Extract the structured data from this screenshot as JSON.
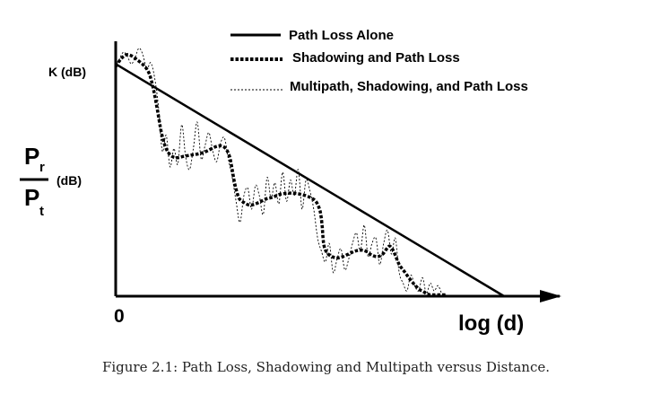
{
  "chart_data": {
    "type": "line",
    "xlabel": "log (d)",
    "x_origin_label": "0",
    "ylabel": {
      "numerator": "P",
      "numerator_sub": "r",
      "denominator": "P",
      "denominator_sub": "t",
      "unit": "(dB)"
    },
    "y_marker_label": "K (dB)",
    "xlim": [
      0,
      1
    ],
    "ylim": [
      0,
      1
    ],
    "legend_placement": "top-center",
    "series": [
      {
        "name": "Path Loss Alone",
        "style": "solid",
        "x": [
          0,
          1
        ],
        "y": [
          0.88,
          0
        ]
      },
      {
        "name": "Shadowing and Path Loss",
        "style": "dotted-thick",
        "x": [
          0.0,
          0.014,
          0.028,
          0.042,
          0.056,
          0.072,
          0.086,
          0.098,
          0.108,
          0.115,
          0.121,
          0.127,
          0.135,
          0.145,
          0.158,
          0.175,
          0.195,
          0.215,
          0.235,
          0.255,
          0.27,
          0.283,
          0.293,
          0.3,
          0.306,
          0.312,
          0.318,
          0.33,
          0.345,
          0.36,
          0.375,
          0.39,
          0.405,
          0.42,
          0.44,
          0.46,
          0.48,
          0.5,
          0.515,
          0.525,
          0.529,
          0.532,
          0.534,
          0.536,
          0.54,
          0.547,
          0.557,
          0.57,
          0.585,
          0.6,
          0.615,
          0.63,
          0.645,
          0.66,
          0.675,
          0.688,
          0.698,
          0.705,
          0.712,
          0.72,
          0.73,
          0.745,
          0.76,
          0.772,
          0.782,
          0.79,
          0.795,
          0.8,
          0.803,
          0.807,
          0.812,
          0.82,
          0.828,
          0.84,
          0.85
        ],
        "y": [
          0.87,
          0.9,
          0.915,
          0.91,
          0.895,
          0.875,
          0.845,
          0.78,
          0.7,
          0.64,
          0.6,
          0.57,
          0.545,
          0.53,
          0.525,
          0.53,
          0.535,
          0.54,
          0.55,
          0.565,
          0.57,
          0.56,
          0.53,
          0.48,
          0.43,
          0.395,
          0.37,
          0.355,
          0.345,
          0.35,
          0.36,
          0.37,
          0.375,
          0.385,
          0.39,
          0.39,
          0.385,
          0.375,
          0.36,
          0.33,
          0.3,
          0.26,
          0.22,
          0.195,
          0.175,
          0.16,
          0.15,
          0.145,
          0.15,
          0.16,
          0.17,
          0.175,
          0.17,
          0.155,
          0.15,
          0.16,
          0.18,
          0.19,
          0.18,
          0.155,
          0.12,
          0.09,
          0.06,
          0.04,
          0.025,
          0.02,
          0.015,
          0.01,
          0.008,
          0.006,
          0.005,
          0.005,
          0.005,
          0.005,
          0.005
        ]
      },
      {
        "name": "Multipath, Shadowing, and Path Loss",
        "style": "dotted-thin",
        "x": [
          0.0,
          0.01,
          0.02,
          0.03,
          0.04,
          0.05,
          0.06,
          0.07,
          0.08,
          0.09,
          0.1,
          0.11,
          0.12,
          0.13,
          0.14,
          0.15,
          0.16,
          0.17,
          0.18,
          0.19,
          0.2,
          0.21,
          0.22,
          0.23,
          0.24,
          0.25,
          0.26,
          0.27,
          0.28,
          0.29,
          0.3,
          0.31,
          0.32,
          0.33,
          0.34,
          0.35,
          0.36,
          0.37,
          0.38,
          0.39,
          0.4,
          0.41,
          0.42,
          0.43,
          0.44,
          0.45,
          0.46,
          0.47,
          0.48,
          0.49,
          0.5,
          0.51,
          0.52,
          0.53,
          0.54,
          0.55,
          0.56,
          0.57,
          0.58,
          0.59,
          0.6,
          0.61,
          0.62,
          0.63,
          0.64,
          0.65,
          0.66,
          0.67,
          0.68,
          0.69,
          0.7,
          0.71,
          0.72,
          0.73,
          0.74,
          0.75,
          0.76,
          0.77,
          0.78,
          0.79,
          0.8,
          0.81,
          0.82,
          0.83,
          0.84,
          0.85
        ],
        "y": [
          0.87,
          0.9,
          0.925,
          0.91,
          0.88,
          0.905,
          0.94,
          0.915,
          0.86,
          0.885,
          0.83,
          0.72,
          0.55,
          0.61,
          0.49,
          0.56,
          0.5,
          0.65,
          0.53,
          0.48,
          0.56,
          0.66,
          0.52,
          0.57,
          0.62,
          0.55,
          0.51,
          0.58,
          0.6,
          0.52,
          0.45,
          0.36,
          0.28,
          0.38,
          0.41,
          0.33,
          0.42,
          0.38,
          0.31,
          0.45,
          0.37,
          0.43,
          0.35,
          0.47,
          0.36,
          0.44,
          0.38,
          0.48,
          0.33,
          0.44,
          0.4,
          0.33,
          0.22,
          0.17,
          0.13,
          0.2,
          0.09,
          0.14,
          0.18,
          0.1,
          0.14,
          0.2,
          0.24,
          0.17,
          0.27,
          0.15,
          0.2,
          0.22,
          0.12,
          0.2,
          0.25,
          0.16,
          0.22,
          0.09,
          0.05,
          0.02,
          0.08,
          0.04,
          0.02,
          0.07,
          0.01,
          0.05,
          0.02,
          0.04,
          0.01,
          0.005
        ]
      }
    ]
  },
  "caption": "Figure 2.1: Path Loss, Shadowing and Multipath versus Distance."
}
